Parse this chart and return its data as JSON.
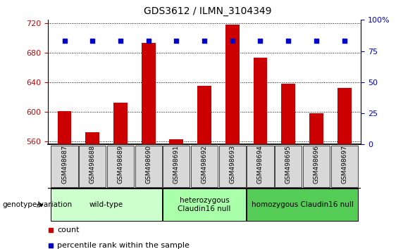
{
  "title": "GDS3612 / ILMN_3104349",
  "samples": [
    "GSM498687",
    "GSM498688",
    "GSM498689",
    "GSM498690",
    "GSM498691",
    "GSM498692",
    "GSM498693",
    "GSM498694",
    "GSM498695",
    "GSM498696",
    "GSM498697"
  ],
  "counts": [
    601,
    572,
    612,
    693,
    563,
    635,
    718,
    673,
    638,
    598,
    632
  ],
  "dot_percentile": 83,
  "ymin": 556,
  "ymax": 724,
  "yticks": [
    560,
    600,
    640,
    680,
    720
  ],
  "right_yticks": [
    0,
    25,
    50,
    75,
    100
  ],
  "bar_color": "#cc0000",
  "dot_color": "#0000cc",
  "groups": [
    {
      "label": "wild-type",
      "start": 0,
      "end": 3,
      "color": "#ccffcc"
    },
    {
      "label": "heterozygous\nClaudin16 null",
      "start": 4,
      "end": 6,
      "color": "#aaffaa"
    },
    {
      "label": "homozygous Claudin16 null",
      "start": 7,
      "end": 10,
      "color": "#55cc55"
    }
  ],
  "group_label": "genotype/variation",
  "legend_count": "count",
  "legend_percentile": "percentile rank within the sample",
  "bar_width": 0.5,
  "tick_label_color_left": "#cc0000",
  "tick_label_color_right": "#0000cc"
}
